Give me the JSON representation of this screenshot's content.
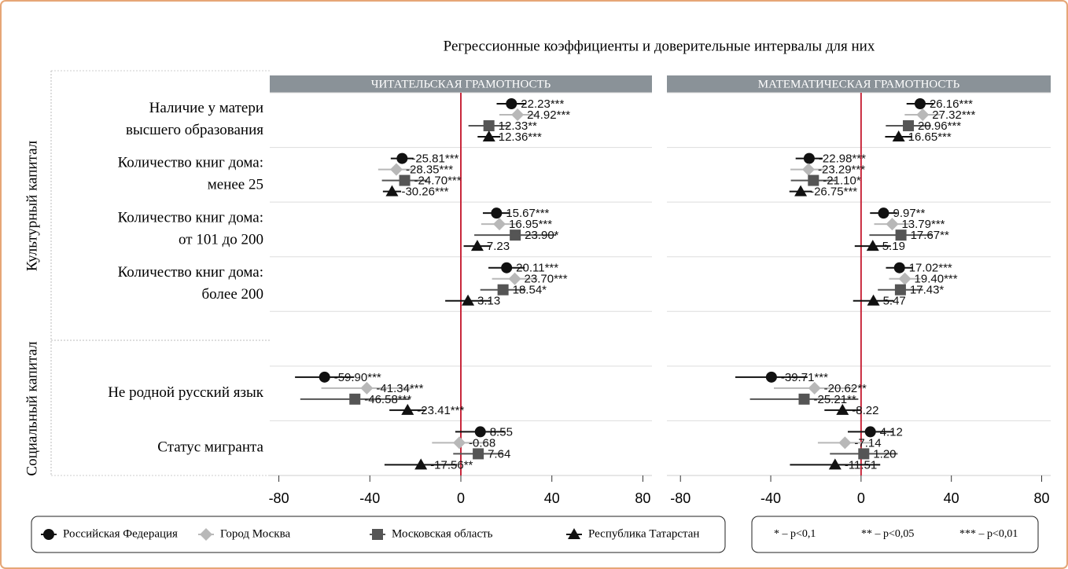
{
  "title": "Регрессионные коэффициенты и доверительные интервалы для них",
  "groups": [
    "Культурный капитал",
    "Социальный капитал"
  ],
  "notes": [
    "* – p<0,1",
    "** – p<0,05",
    "*** – p<0,01"
  ],
  "chart_data": [
    {
      "type": "forest",
      "title": "ЧИТАТЕЛЬСКАЯ ГРАМОТНОСТЬ",
      "categories": [
        [
          "Наличие у матери",
          "высшего образования"
        ],
        [
          "Количество книг дома:",
          "менее 25"
        ],
        [
          "Количество книг дома:",
          "от 101 до 200"
        ],
        [
          "Количество книг дома:",
          "более 200"
        ],
        null,
        [
          "Не родной русский язык"
        ],
        [
          "Статус мигранта"
        ]
      ],
      "xlim": [
        -84,
        84
      ],
      "xticks": [
        -80,
        -40,
        0,
        40,
        80
      ],
      "reference_line": 0,
      "reference_color": "#c8283c",
      "series": [
        {
          "name": "Российская Федерация",
          "color": "#111111",
          "marker": "circle",
          "values": [
            22.23,
            -25.81,
            15.67,
            20.11,
            null,
            -59.9,
            8.55
          ],
          "errors": [
            6.5,
            5,
            6,
            8,
            null,
            13,
            11
          ],
          "value_labels": [
            "22.23***",
            "-25.81***",
            "15.67***",
            "20.11***",
            null,
            "-59.90***",
            "8.55"
          ]
        },
        {
          "name": "Город Москва",
          "color": "#b8b8b8",
          "marker": "diamond",
          "values": [
            24.92,
            -28.35,
            16.95,
            23.7,
            null,
            -41.34,
            -0.68
          ],
          "errors": [
            8,
            8,
            8,
            10,
            null,
            20,
            12
          ],
          "value_labels": [
            "24.92***",
            "-28.35***",
            "16.95***",
            "23.70***",
            null,
            "-41.34***",
            "-0.68"
          ]
        },
        {
          "name": "Московская область",
          "color": "#555555",
          "marker": "square",
          "values": [
            12.33,
            -24.7,
            23.9,
            18.54,
            null,
            -46.58,
            7.64
          ],
          "errors": [
            9,
            10,
            18,
            10,
            null,
            24,
            11
          ],
          "value_labels": [
            "12.33**",
            "-24.70***",
            "23.90*",
            "18.54*",
            null,
            "-46.58***",
            "7.64"
          ]
        },
        {
          "name": "Республика Татарстан",
          "color": "#111111",
          "marker": "triangle",
          "values": [
            12.36,
            -30.26,
            7.23,
            3.13,
            null,
            -23.41,
            -17.56
          ],
          "errors": [
            5,
            4,
            6,
            10,
            null,
            8,
            16
          ],
          "value_labels": [
            "12.36***",
            "-30.26***",
            "7.23",
            "3.13",
            null,
            "-23.41***",
            "-17.56**"
          ]
        }
      ]
    },
    {
      "type": "forest",
      "title": "МАТЕМАТИЧЕСКАЯ ГРАМОТНОСТЬ",
      "xlim": [
        -86,
        84
      ],
      "xticks": [
        -80,
        -40,
        0,
        40,
        80
      ],
      "reference_line": 0,
      "reference_color": "#c8283c",
      "series": [
        {
          "name": "Российская Федерация",
          "color": "#111111",
          "marker": "circle",
          "values": [
            26.16,
            -22.98,
            9.97,
            17.02,
            null,
            -39.71,
            4.12
          ],
          "errors": [
            6,
            6,
            6,
            6,
            null,
            16,
            10
          ],
          "value_labels": [
            "26.16***",
            "-22.98***",
            "9.97**",
            "17.02***",
            null,
            "-39.71***",
            "4.12"
          ]
        },
        {
          "name": "Город Москва",
          "color": "#b8b8b8",
          "marker": "diamond",
          "values": [
            27.32,
            -23.29,
            13.79,
            19.4,
            null,
            -20.62,
            -7.14
          ],
          "errors": [
            8,
            8,
            8,
            7,
            null,
            18,
            12
          ],
          "value_labels": [
            "27.32***",
            "-23.29***",
            "13.79***",
            "19.40***",
            null,
            "-20.62**",
            "-7.14"
          ]
        },
        {
          "name": "Московская область",
          "color": "#555555",
          "marker": "square",
          "values": [
            20.96,
            -21.1,
            17.67,
            17.43,
            null,
            -25.21,
            1.2
          ],
          "errors": [
            10,
            10,
            14,
            10,
            null,
            24,
            15
          ],
          "value_labels": [
            "20.96***",
            "-21.10*",
            "17.67**",
            "17.43*",
            null,
            "-25.21**",
            "1.20"
          ]
        },
        {
          "name": "Республика Татарстан",
          "color": "#111111",
          "marker": "triangle",
          "values": [
            16.65,
            -26.75,
            5.19,
            5.47,
            null,
            -8.22,
            -11.51
          ],
          "errors": [
            6,
            5,
            8,
            9,
            null,
            8,
            20
          ],
          "value_labels": [
            "16.65***",
            "-26.75***",
            "5.19",
            "5.47",
            null,
            "-8.22",
            "-11.51"
          ]
        }
      ]
    }
  ]
}
